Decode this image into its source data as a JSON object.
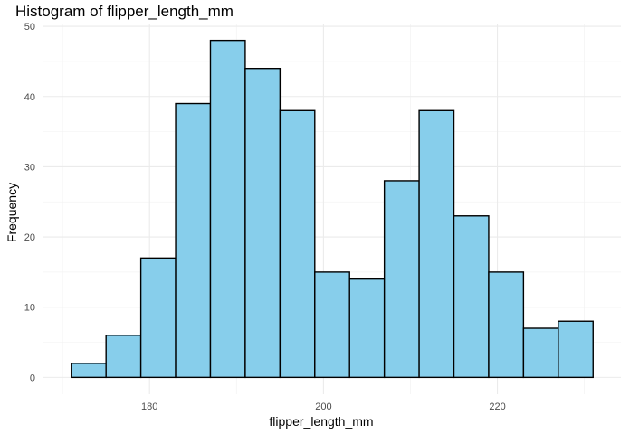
{
  "chart_data": {
    "type": "bar",
    "title": "Histogram of flipper_length_mm",
    "xlabel": "flipper_length_mm",
    "ylabel": "Frequency",
    "fill_color": "#87ceeb",
    "outline_color": "#000000",
    "grid": true,
    "theme": "minimal",
    "bin_width": 4.0,
    "bins": [
      {
        "start": 171.0,
        "end": 175.0,
        "count": 2
      },
      {
        "start": 175.0,
        "end": 179.0,
        "count": 6
      },
      {
        "start": 179.0,
        "end": 183.0,
        "count": 17
      },
      {
        "start": 183.0,
        "end": 187.0,
        "count": 39
      },
      {
        "start": 187.0,
        "end": 191.0,
        "count": 48
      },
      {
        "start": 191.0,
        "end": 195.0,
        "count": 44
      },
      {
        "start": 195.0,
        "end": 199.0,
        "count": 38
      },
      {
        "start": 199.0,
        "end": 203.0,
        "count": 15
      },
      {
        "start": 203.0,
        "end": 207.0,
        "count": 14
      },
      {
        "start": 207.0,
        "end": 211.0,
        "count": 28
      },
      {
        "start": 211.0,
        "end": 215.0,
        "count": 38
      },
      {
        "start": 215.0,
        "end": 219.0,
        "count": 23
      },
      {
        "start": 219.0,
        "end": 223.0,
        "count": 15
      },
      {
        "start": 223.0,
        "end": 227.0,
        "count": 7
      },
      {
        "start": 227.0,
        "end": 231.0,
        "count": 8
      }
    ],
    "xlim": [
      167.8,
      234.2
    ],
    "ylim": [
      -2.4,
      50.4
    ],
    "x_ticks": [
      180,
      200,
      220
    ],
    "y_ticks": [
      0,
      10,
      20,
      30,
      40,
      50
    ],
    "x_minor_ticks": [
      170,
      190,
      210,
      230
    ],
    "y_minor_ticks": [
      5,
      15,
      25,
      35,
      45
    ]
  }
}
